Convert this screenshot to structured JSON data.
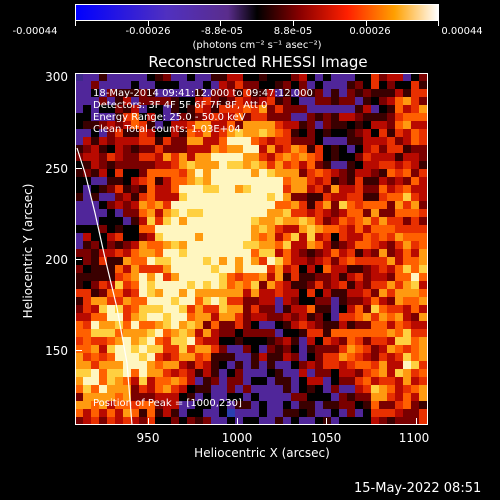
{
  "colorbar": {
    "tick_labels": [
      "-0.00044",
      "-0.00026",
      "-8.8e-05",
      "8.8e-05",
      "0.00026",
      "0.00044"
    ],
    "unit": "(photons cm⁻² s⁻¹ asec⁻²)"
  },
  "title": "Reconstructed RHESSI Image",
  "info": {
    "line1": "18-May-2014 09:41:12.000 to 09:47:12.000",
    "line2": "Detectors: 3F 4F 5F 6F 7F 8F, Att 0",
    "line3": "Energy Range: 25.0 - 50.0 keV",
    "line4": "Clean    Total counts: 1.03E+04",
    "peak": "Position of Peak = [1000,230]"
  },
  "axes": {
    "xlabel": "Heliocentric X (arcsec)",
    "ylabel": "Heliocentric Y (arcsec)",
    "xticks": [
      "950",
      "1000",
      "1050",
      "1100"
    ],
    "yticks": [
      "300",
      "250",
      "200",
      "150"
    ]
  },
  "datestamp": "15-May-2022 08:51"
}
